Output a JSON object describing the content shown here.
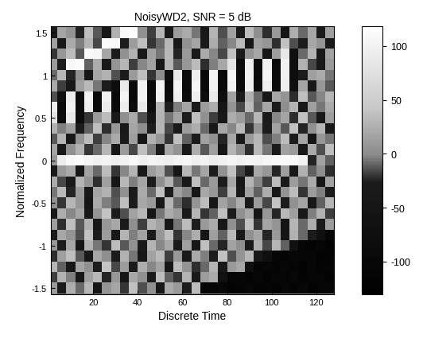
{
  "chart_data": {
    "type": "heatmap",
    "title": "NoisyWD2, SNR = 5 dB",
    "x_label": "Discrete Time",
    "y_label": "Normalized Frequency",
    "x": [
      2,
      6,
      10,
      14,
      18,
      22,
      26,
      30,
      34,
      38,
      42,
      46,
      50,
      54,
      58,
      62,
      66,
      70,
      74,
      78,
      82,
      86,
      90,
      94,
      98,
      102,
      106,
      110,
      114,
      118,
      122,
      126
    ],
    "y": [
      -1.5,
      -1.375,
      -1.25,
      -1.125,
      -1,
      -0.875,
      -0.75,
      -0.625,
      -0.5,
      -0.375,
      -0.25,
      -0.125,
      0,
      0.125,
      0.25,
      0.375,
      0.5,
      0.625,
      0.75,
      0.875,
      1,
      1.125,
      1.25,
      1.375,
      1.5
    ],
    "cells": [
      [
        12,
        -35,
        24,
        -8,
        30,
        -52,
        6,
        18,
        -20,
        38,
        -14,
        4,
        -40,
        22,
        10,
        -26,
        34,
        -108,
        -112,
        -105,
        -118,
        -110,
        -102,
        -115,
        -109,
        -120,
        -106,
        -113,
        -104,
        -117,
        -111,
        -108
      ],
      [
        -18,
        26,
        -4,
        -40,
        14,
        32,
        -24,
        8,
        -50,
        20,
        4,
        -30,
        36,
        -10,
        -20,
        28,
        -38,
        12,
        22,
        -70,
        -110,
        -106,
        -114,
        -103,
        -118,
        -109,
        -112,
        -105,
        -116,
        -108,
        -111,
        -119
      ],
      [
        30,
        -10,
        -44,
        18,
        4,
        -26,
        40,
        -16,
        12,
        -34,
        24,
        -2,
        16,
        -48,
        34,
        6,
        -22,
        -8,
        28,
        -40,
        10,
        20,
        -75,
        -112,
        -107,
        -115,
        -104,
        -110,
        -118,
        -106,
        -113,
        -109
      ],
      [
        -22,
        14,
        36,
        -12,
        -40,
        20,
        2,
        -30,
        26,
        -6,
        -46,
        16,
        32,
        -18,
        8,
        -36,
        22,
        -4,
        -28,
        38,
        -14,
        6,
        30,
        -42,
        -72,
        -110,
        -116,
        -105,
        -112,
        -108,
        -119,
        -114
      ],
      [
        8,
        -28,
        18,
        -48,
        26,
        -6,
        -20,
        34,
        -12,
        4,
        -38,
        28,
        -2,
        20,
        -32,
        14,
        -44,
        36,
        -8,
        -24,
        16,
        2,
        -36,
        24,
        -16,
        30,
        -10,
        -68,
        -109,
        -114,
        -107,
        -117
      ],
      [
        -34,
        20,
        6,
        -14,
        38,
        -26,
        12,
        -42,
        28,
        -4,
        16,
        -30,
        8,
        36,
        -20,
        -2,
        24,
        -46,
        14,
        -10,
        32,
        -38,
        4,
        18,
        -24,
        10,
        -50,
        26,
        -8,
        -30,
        -75,
        -112
      ],
      [
        14,
        -22,
        36,
        -12,
        26,
        -44,
        8,
        20,
        -32,
        2,
        -18,
        28,
        16,
        -48,
        -6,
        34,
        -26,
        10,
        22,
        -40,
        4,
        -14,
        38,
        -20,
        18,
        6,
        -52,
        30,
        -8,
        24,
        -35,
        12
      ],
      [
        -42,
        24,
        -2,
        18,
        -36,
        6,
        40,
        -28,
        -14,
        16,
        30,
        -46,
        -6,
        22,
        12,
        -38,
        28,
        -20,
        -10,
        36,
        -30,
        4,
        20,
        -50,
        8,
        -24,
        32,
        14,
        -40,
        -4,
        26,
        -18
      ],
      [
        2,
        -20,
        30,
        8,
        -50,
        22,
        -4,
        -12,
        36,
        -30,
        20,
        10,
        -40,
        28,
        -8,
        -22,
        6,
        34,
        -48,
        16,
        -2,
        24,
        -34,
        12,
        -16,
        40,
        -26,
        4,
        18,
        -44,
        -10,
        30
      ],
      [
        -6,
        32,
        -24,
        10,
        -40,
        18,
        26,
        -14,
        4,
        -36,
        22,
        -8,
        38,
        -28,
        14,
        -2,
        -46,
        20,
        8,
        -18,
        30,
        -32,
        16,
        -10,
        24,
        -42,
        6,
        34,
        -20,
        12,
        -4,
        -30
      ],
      [
        24,
        -16,
        -38,
        28,
        6,
        -22,
        14,
        -48,
        32,
        -4,
        18,
        -30,
        2,
        26,
        -12,
        -40,
        36,
        -8,
        10,
        -26,
        20,
        -44,
        28,
        -2,
        -18,
        34,
        -36,
        12,
        -6,
        22,
        -50,
        16
      ],
      [
        -30,
        10,
        22,
        -44,
        16,
        -8,
        34,
        -20,
        -2,
        28,
        -36,
        12,
        24,
        -14,
        -46,
        30,
        -6,
        18,
        -28,
        4,
        38,
        -16,
        -34,
        20,
        8,
        -24,
        14,
        -40,
        26,
        -10,
        2,
        -22
      ],
      [
        8,
        92,
        108,
        112,
        104,
        98,
        102,
        95,
        100,
        106,
        97,
        103,
        99,
        94,
        101,
        105,
        96,
        100,
        93,
        98,
        104,
        97,
        102,
        99,
        106,
        110,
        113,
        108,
        98,
        -24,
        16,
        -10
      ],
      [
        18,
        -36,
        4,
        26,
        -20,
        -8,
        30,
        -44,
        12,
        -16,
        36,
        -4,
        -28,
        20,
        6,
        -38,
        24,
        -12,
        14,
        -48,
        28,
        2,
        -22,
        32,
        -6,
        -34,
        16,
        10,
        -42,
        22,
        -14,
        36
      ],
      [
        -12,
        28,
        -40,
        6,
        34,
        -18,
        -2,
        22,
        -32,
        14,
        -46,
        26,
        8,
        -20,
        38,
        -10,
        -30,
        16,
        4,
        -24,
        20,
        -38,
        10,
        30,
        -14,
        -4,
        34,
        -26,
        18,
        -48,
        8,
        -6
      ],
      [
        26,
        -4,
        14,
        -30,
        -10,
        36,
        -22,
        8,
        -42,
        18,
        2,
        -26,
        30,
        -16,
        -36,
        12,
        24,
        -8,
        -44,
        20,
        -2,
        32,
        -20,
        6,
        -30,
        16,
        -12,
        38,
        -24,
        4,
        28,
        -40
      ],
      [
        80,
        -85,
        88,
        -82,
        -20,
        10,
        34,
        -36,
        2,
        22,
        -14,
        -46,
        28,
        -6,
        16,
        -28,
        36,
        4,
        -18,
        -40,
        24,
        12,
        -8,
        30,
        -32,
        -2,
        18,
        -22,
        38,
        -12,
        -44,
        14
      ],
      [
        95,
        -90,
        100,
        -88,
        96,
        -92,
        90,
        -86,
        94,
        -84,
        88,
        -80,
        30,
        -26,
        -4,
        18,
        -38,
        12,
        24,
        -48,
        6,
        -16,
        34,
        -10,
        20,
        -30,
        2,
        28,
        -42,
        14,
        -6,
        22
      ],
      [
        -14,
        -70,
        92,
        -88,
        100,
        -95,
        98,
        -92,
        102,
        -96,
        100,
        -94,
        98,
        -90,
        96,
        -88,
        92,
        -85,
        88,
        -78,
        16,
        -34,
        26,
        -8,
        -40,
        20,
        6,
        -22,
        36,
        -12,
        -2,
        30
      ],
      [
        22,
        -18,
        -42,
        14,
        32,
        -6,
        -28,
        -80,
        90,
        -94,
        98,
        -96,
        102,
        -98,
        100,
        -95,
        104,
        -98,
        100,
        -96,
        98,
        -92,
        96,
        -90,
        94,
        -88,
        92,
        -70,
        18,
        -36,
        8,
        -12
      ],
      [
        -8,
        30,
        -24,
        4,
        -46,
        18,
        26,
        -14,
        -34,
        10,
        36,
        -20,
        2,
        -75,
        88,
        -92,
        96,
        -98,
        102,
        -100,
        104,
        -98,
        100,
        -96,
        102,
        -94,
        98,
        -80,
        -30,
        14,
        22,
        -6
      ],
      [
        12,
        -26,
        108,
        112,
        -10,
        24,
        -38,
        6,
        30,
        -18,
        -2,
        16,
        -44,
        28,
        -12,
        8,
        34,
        -22,
        -4,
        20,
        80,
        -90,
        96,
        -94,
        100,
        -96,
        98,
        -82,
        26,
        -16,
        -40,
        10
      ],
      [
        -20,
        8,
        34,
        -12,
        110,
        106,
        18,
        -30,
        4,
        26,
        -42,
        14,
        -6,
        32,
        -24,
        10,
        -36,
        22,
        -2,
        -16,
        38,
        -28,
        6,
        20,
        -46,
        12,
        85,
        -75,
        -8,
        28,
        -32,
        16
      ],
      [
        16,
        -38,
        22,
        -4,
        28,
        -16,
        112,
        108,
        -26,
        12,
        36,
        -20,
        -8,
        30,
        -40,
        4,
        18,
        -34,
        24,
        -10,
        -2,
        32,
        -46,
        14,
        8,
        -22,
        38,
        -14,
        -30,
        20,
        6,
        -36
      ],
      [
        -32,
        18,
        6,
        -24,
        36,
        -12,
        -44,
        26,
        110,
        114,
        4,
        -18,
        30,
        -36,
        12,
        22,
        -6,
        -40,
        28,
        -14,
        16,
        -28,
        34,
        2,
        -22,
        10,
        -48,
        24,
        -8,
        20,
        -30,
        14
      ]
    ],
    "xlim": [
      1,
      128
    ],
    "ylim": [
      -1.57,
      1.57
    ],
    "xticks": [
      20,
      40,
      60,
      80,
      100,
      120
    ],
    "yticks": [
      -1.5,
      -1,
      -0.5,
      0,
      0.5,
      1,
      1.5
    ],
    "color_range": [
      -130,
      118
    ],
    "color_ticks": [
      -100,
      -50,
      0,
      50,
      100
    ]
  }
}
